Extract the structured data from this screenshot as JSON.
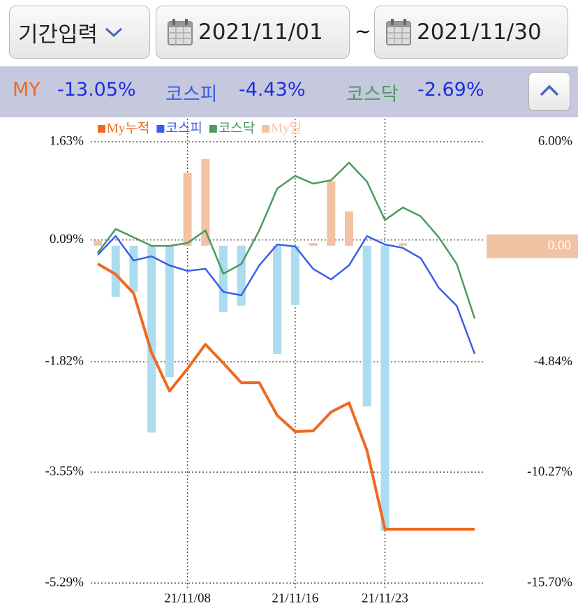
{
  "header": {
    "period_button": "기간입력",
    "start_date": "2021/11/01",
    "separator": "~",
    "end_date": "2021/11/30"
  },
  "summary": [
    {
      "name": "MY",
      "value": "-13.05%"
    },
    {
      "name": "코스피",
      "value": "-4.43%"
    },
    {
      "name": "코스닥",
      "value": "-2.69%"
    }
  ],
  "chart_data": {
    "type": "combo",
    "categories": [
      null,
      null,
      null,
      null,
      null,
      "21/11/08",
      null,
      null,
      null,
      null,
      null,
      "21/11/16",
      null,
      null,
      null,
      null,
      "21/11/23",
      null,
      null,
      null,
      null,
      null
    ],
    "ylim": [
      -5.29,
      1.63
    ],
    "yticks": [
      {
        "value": 1.63,
        "label": "1.63%"
      },
      {
        "value": 0.09,
        "label": "0.09%"
      },
      {
        "value": -1.82,
        "label": "-1.82%"
      },
      {
        "value": -3.55,
        "label": "-3.55%"
      },
      {
        "value": -5.29,
        "label": "-5.29%"
      }
    ],
    "y2lim": [
      -15.7,
      6.0
    ],
    "y2ticks": [
      {
        "value": 6.0,
        "label": "6.00%"
      },
      {
        "value": -4.84,
        "label": "-4.84%"
      },
      {
        "value": -10.27,
        "label": "-10.27%"
      },
      {
        "value": -15.7,
        "label": "-15.70%"
      }
    ],
    "y2_marker": {
      "value": 0,
      "label": "0.00"
    },
    "grid": true,
    "series": [
      {
        "name": "My누적",
        "type": "line",
        "axis": "y2",
        "color": "#ee6a22",
        "width": 4,
        "values": [
          0,
          -0.52,
          -1.45,
          -4.37,
          -6.26,
          -5.16,
          -3.96,
          -4.89,
          -5.85,
          -5.85,
          -7.46,
          -8.25,
          -8.22,
          -7.29,
          -6.84,
          -9.18,
          -13.05,
          -13.05,
          -13.05,
          -13.05,
          -13.05,
          -13.05
        ]
      },
      {
        "name": "코스피",
        "type": "line",
        "axis": "y2",
        "color": "#3a5ee8",
        "width": 2.5,
        "values": [
          0.44,
          1.36,
          0.16,
          0.37,
          -0.08,
          -0.35,
          -0.25,
          -1.38,
          -1.55,
          -0.08,
          0.95,
          0.85,
          -0.25,
          -0.77,
          -0.08,
          1.36,
          0.95,
          0.78,
          0.27,
          -1.18,
          -2.07,
          -4.43
        ]
      },
      {
        "name": "코스닥",
        "type": "line",
        "axis": "y2",
        "color": "#4a9a5e",
        "width": 2.5,
        "values": [
          0.54,
          1.71,
          1.3,
          0.88,
          0.88,
          1.02,
          1.64,
          -0.49,
          -0.01,
          1.64,
          3.7,
          4.32,
          3.94,
          4.11,
          4.97,
          4.04,
          2.15,
          2.77,
          2.33,
          1.3,
          -0.01,
          -2.69
        ]
      },
      {
        "name": "My일",
        "type": "bar",
        "axis": "y",
        "color": "#f3c2a3",
        "negative_color": "#abdcf0",
        "values": [
          0.08,
          -0.8,
          -0.72,
          -2.93,
          -2.06,
          1.14,
          1.36,
          -1.04,
          -0.94,
          0,
          -1.7,
          -0.93,
          0.04,
          1.01,
          0.54,
          -2.52,
          -4.47,
          0.04,
          0,
          0,
          0,
          0
        ]
      }
    ]
  }
}
